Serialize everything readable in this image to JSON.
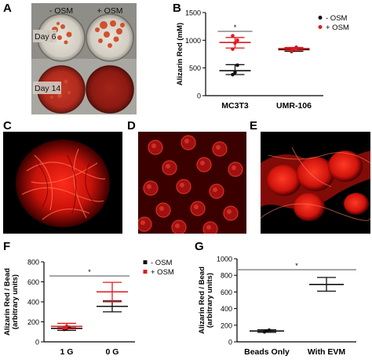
{
  "panels": {
    "A": {
      "letter": "A",
      "col_labels": [
        "- OSM",
        "+ OSM"
      ],
      "row_labels": [
        "Day 6",
        "Day 14"
      ]
    },
    "B": {
      "letter": "B"
    },
    "C": {
      "letter": "C"
    },
    "D": {
      "letter": "D"
    },
    "E": {
      "letter": "E"
    },
    "F": {
      "letter": "F"
    },
    "G": {
      "letter": "G"
    }
  },
  "colors": {
    "black_series": "#111111",
    "red_series": "#e0191e",
    "sig_line": "#888888",
    "stain_red": "#e01010"
  },
  "chart_data": [
    {
      "panel": "B",
      "type": "scatter",
      "ylabel": "Alizarin Red (mM)",
      "ylim": [
        0,
        1500
      ],
      "yticks": [
        0,
        500,
        1000,
        1500
      ],
      "categories": [
        "MC3T3",
        "UMR-106"
      ],
      "legend": {
        "position": "top-right",
        "marker": "dot"
      },
      "significance": [
        {
          "from": "MC3T3",
          "to": "MC3T3",
          "label": "*"
        }
      ],
      "series": [
        {
          "name": "- OSM",
          "color": "#111111",
          "points": {
            "MC3T3": [
              380,
              420,
              550
            ],
            "UMR-106": [
              800,
              840,
              870
            ]
          },
          "mean": {
            "MC3T3": 450,
            "UMR-106": 830
          },
          "err": {
            "MC3T3": [
              380,
              560
            ],
            "UMR-106": [
              800,
              860
            ]
          }
        },
        {
          "name": "+ OSM",
          "color": "#e0191e",
          "points": {
            "MC3T3": [
              840,
              950,
              1000,
              1080
            ],
            "UMR-106": [
              810,
              840,
              860
            ]
          },
          "mean": {
            "MC3T3": 960,
            "UMR-106": 850
          },
          "err": {
            "MC3T3": [
              860,
              1050
            ],
            "UMR-106": [
              820,
              870
            ]
          }
        }
      ]
    },
    {
      "panel": "F",
      "type": "scatter",
      "ylabel": "Alizarin Red / Bead (arbitrary units)",
      "ylim": [
        0,
        800
      ],
      "yticks": [
        0,
        200,
        400,
        600,
        800
      ],
      "categories": [
        "1 G",
        "0 G"
      ],
      "legend": {
        "position": "top-right",
        "marker": "square"
      },
      "significance": [
        {
          "from": "1 G",
          "to": "0 G",
          "label": "*"
        }
      ],
      "series": [
        {
          "name": "- OSM",
          "color": "#111111",
          "points": {
            "1 G": [
              125,
              135,
              145
            ],
            "0 G": []
          },
          "mean": {
            "1 G": 135,
            "0 G": 355
          },
          "err": {
            "1 G": [
              115,
              150
            ],
            "0 G": [
              300,
              410
            ]
          }
        },
        {
          "name": "+ OSM",
          "color": "#e0191e",
          "points": {
            "1 G": [
              140,
              155
            ],
            "0 G": []
          },
          "mean": {
            "1 G": 155,
            "0 G": 500
          },
          "err": {
            "1 G": [
              130,
              185
            ],
            "0 G": [
              400,
              595
            ]
          }
        }
      ]
    },
    {
      "panel": "G",
      "type": "scatter",
      "ylabel": "Alizarin Red / Bead (arbitrary units)",
      "ylim": [
        0,
        1000
      ],
      "yticks": [
        0,
        200,
        400,
        600,
        800,
        1000
      ],
      "categories": [
        "Beads Only",
        "With EVM"
      ],
      "significance": [
        {
          "from": "Beads Only",
          "to": "With EVM",
          "label": "*"
        }
      ],
      "series": [
        {
          "name": "",
          "color": "#111111",
          "points": {
            "Beads Only": [
              120,
              130,
              140
            ],
            "With EVM": []
          },
          "mean": {
            "Beads Only": 130,
            "With EVM": 690
          },
          "err": {
            "Beads Only": [
              115,
              145
            ],
            "With EVM": [
              610,
              775
            ]
          }
        }
      ]
    }
  ]
}
